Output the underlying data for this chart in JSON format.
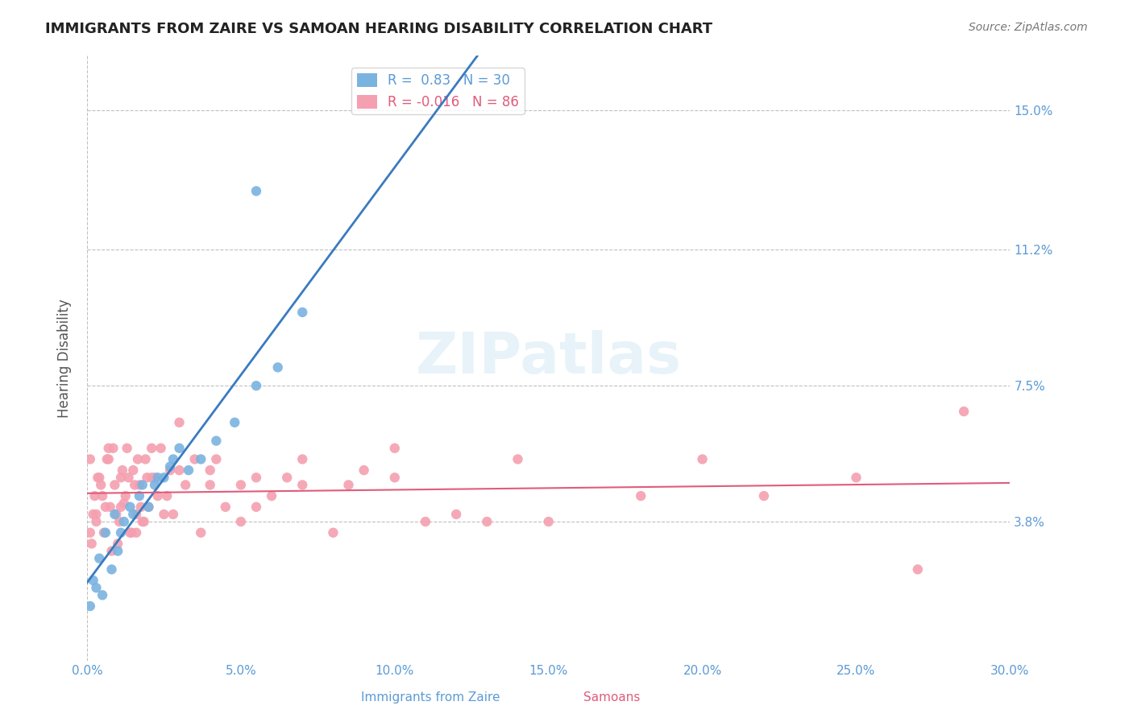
{
  "title": "IMMIGRANTS FROM ZAIRE VS SAMOAN HEARING DISABILITY CORRELATION CHART",
  "source": "Source: ZipAtlas.com",
  "xlabel_blue": "Immigrants from Zaire",
  "xlabel_pink": "Samoans",
  "ylabel": "Hearing Disability",
  "xlim": [
    0.0,
    30.0
  ],
  "ylim": [
    0.0,
    16.0
  ],
  "yticks": [
    3.8,
    7.5,
    11.2,
    15.0
  ],
  "xticks": [
    0.0,
    5.0,
    10.0,
    15.0,
    20.0,
    25.0,
    30.0
  ],
  "blue_R": 0.83,
  "blue_N": 30,
  "pink_R": -0.016,
  "pink_N": 86,
  "blue_color": "#7ab3e0",
  "pink_color": "#f4a0b0",
  "blue_line_color": "#3a7bbf",
  "pink_line_color": "#e05c7a",
  "watermark": "ZIPatlas",
  "blue_scatter_x": [
    0.3,
    0.5,
    0.8,
    1.0,
    1.2,
    1.5,
    1.7,
    2.0,
    2.2,
    2.5,
    2.8,
    3.0,
    3.3,
    3.7,
    4.2,
    4.8,
    5.5,
    6.2,
    7.0,
    0.2,
    0.4,
    0.6,
    0.9,
    1.1,
    1.4,
    1.8,
    2.3,
    2.7,
    0.1,
    5.5
  ],
  "blue_scatter_y": [
    2.0,
    1.8,
    2.5,
    3.0,
    3.8,
    4.0,
    4.5,
    4.2,
    4.8,
    5.0,
    5.5,
    5.8,
    5.2,
    5.5,
    6.0,
    6.5,
    7.5,
    8.0,
    9.5,
    2.2,
    2.8,
    3.5,
    4.0,
    3.5,
    4.2,
    4.8,
    5.0,
    5.3,
    1.5,
    12.8
  ],
  "pink_scatter_x": [
    0.1,
    0.2,
    0.3,
    0.4,
    0.5,
    0.6,
    0.7,
    0.8,
    0.9,
    1.0,
    1.1,
    1.2,
    1.3,
    1.4,
    1.5,
    1.6,
    1.7,
    1.8,
    1.9,
    2.0,
    2.2,
    2.4,
    2.6,
    2.8,
    3.0,
    3.5,
    4.0,
    4.5,
    5.0,
    5.5,
    6.0,
    7.0,
    8.0,
    9.0,
    10.0,
    12.0,
    15.0,
    20.0,
    0.15,
    0.25,
    0.35,
    0.45,
    0.55,
    0.65,
    0.75,
    0.85,
    0.95,
    1.05,
    1.15,
    1.25,
    1.35,
    1.45,
    1.55,
    1.65,
    1.75,
    1.85,
    1.95,
    2.1,
    2.3,
    2.5,
    2.7,
    3.2,
    3.7,
    4.2,
    5.5,
    6.5,
    8.5,
    11.0,
    14.0,
    18.0,
    25.0,
    0.1,
    0.3,
    0.7,
    1.1,
    1.6,
    2.1,
    3.0,
    4.0,
    5.0,
    7.0,
    10.0,
    13.0,
    22.0,
    27.0,
    28.5
  ],
  "pink_scatter_y": [
    3.5,
    4.0,
    3.8,
    5.0,
    4.5,
    4.2,
    5.5,
    3.0,
    4.8,
    3.2,
    5.0,
    4.3,
    5.8,
    3.5,
    5.2,
    4.0,
    4.8,
    3.8,
    5.5,
    4.2,
    5.0,
    5.8,
    4.5,
    4.0,
    5.2,
    5.5,
    4.8,
    4.2,
    3.8,
    5.0,
    4.5,
    4.8,
    3.5,
    5.2,
    5.8,
    4.0,
    3.8,
    5.5,
    3.2,
    4.5,
    5.0,
    4.8,
    3.5,
    5.5,
    4.2,
    5.8,
    4.0,
    3.8,
    5.2,
    4.5,
    5.0,
    3.5,
    4.8,
    5.5,
    4.2,
    3.8,
    5.0,
    5.8,
    4.5,
    4.0,
    5.2,
    4.8,
    3.5,
    5.5,
    4.2,
    5.0,
    4.8,
    3.8,
    5.5,
    4.5,
    5.0,
    5.5,
    4.0,
    5.8,
    4.2,
    3.5,
    5.0,
    6.5,
    5.2,
    4.8,
    5.5,
    5.0,
    3.8,
    4.5,
    2.5,
    6.8
  ]
}
